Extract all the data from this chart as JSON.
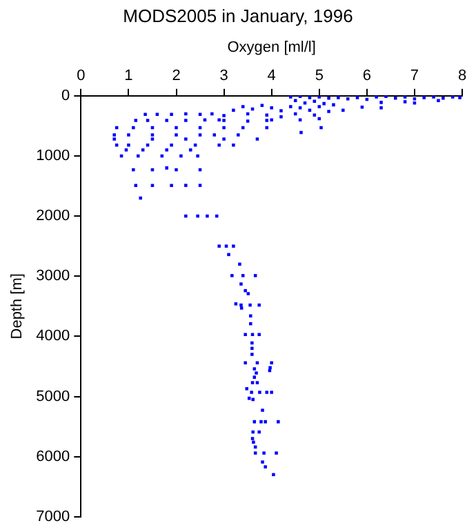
{
  "chart_data": {
    "type": "scatter",
    "title": "MODS2005 in January, 1996",
    "xlabel": "Oxygen [ml/l]",
    "ylabel": "Depth [m]",
    "xlim": [
      0,
      8
    ],
    "xticks": [
      0,
      1,
      2,
      3,
      4,
      5,
      6,
      7,
      8
    ],
    "ylim": [
      7000,
      0
    ],
    "yticks": [
      0,
      1000,
      2000,
      3000,
      4000,
      5000,
      6000,
      7000
    ],
    "grid": false,
    "legend": false,
    "marker": "square",
    "series": [
      {
        "color": "#0000ff",
        "x": [
          4.4,
          4.6,
          4.8,
          5.0,
          5.2,
          5.4,
          5.6,
          5.8,
          6.0,
          6.2,
          6.4,
          6.6,
          6.8,
          7.0,
          7.2,
          7.4,
          7.6,
          7.8,
          7.95,
          6.3,
          6.8,
          7.0,
          7.5,
          5.9,
          6.3,
          5.5,
          4.5,
          4.7,
          4.9,
          5.1,
          4.6,
          4.8,
          5.0,
          5.2,
          4.5,
          4.9,
          5.3,
          4.6,
          5.0,
          4.4,
          2.9,
          3.2,
          3.4,
          3.6,
          3.8,
          4.0,
          4.2,
          3.5,
          3.9,
          3.0,
          4.2,
          1.35,
          1.6,
          1.9,
          2.2,
          2.5,
          2.75,
          1.15,
          1.4,
          1.8,
          2.2,
          2.6,
          3.0,
          3.5,
          3.9,
          4.0,
          4.62,
          5.04,
          0.75,
          1.1,
          1.5,
          2.0,
          2.5,
          3.0,
          3.4,
          3.9,
          0.7,
          1.0,
          1.5,
          2.0,
          2.5,
          2.8,
          3.3,
          3.7,
          3.0,
          2.2,
          1.5,
          0.7,
          0.75,
          1.0,
          1.4,
          1.9,
          2.4,
          2.9,
          3.2,
          0.95,
          1.3,
          1.8,
          2.3,
          0.85,
          1.2,
          1.7,
          2.1,
          2.45,
          1.1,
          1.5,
          1.8,
          2.0,
          2.5,
          1.15,
          1.5,
          1.9,
          2.2,
          2.5,
          1.25,
          2.2,
          2.45,
          2.65,
          2.85,
          2.9,
          3.05,
          3.2,
          3.1,
          3.33,
          3.17,
          3.4,
          3.66,
          3.36,
          3.45,
          3.51,
          3.25,
          3.36,
          3.55,
          3.74,
          3.37,
          3.56,
          3.56,
          3.45,
          3.6,
          3.74,
          3.59,
          3.59,
          3.59,
          3.45,
          3.7,
          4.0,
          3.97,
          3.96,
          3.64,
          3.68,
          3.64,
          3.6,
          3.7,
          3.48,
          3.58,
          3.75,
          3.9,
          4.0,
          3.53,
          3.61,
          3.81,
          3.64,
          3.78,
          3.87,
          4.14,
          3.61,
          3.74,
          3.6,
          3.62,
          3.66,
          3.66,
          3.84,
          4.1,
          3.81,
          3.87,
          4.04
        ],
        "values": [
          20,
          10,
          30,
          20,
          40,
          30,
          50,
          30,
          60,
          20,
          10,
          40,
          20,
          50,
          30,
          20,
          40,
          20,
          30,
          110,
          100,
          120,
          80,
          190,
          200,
          240,
          80,
          120,
          90,
          130,
          200,
          240,
          180,
          260,
          300,
          320,
          150,
          400,
          380,
          180,
          400,
          240,
          180,
          220,
          160,
          200,
          250,
          300,
          320,
          330,
          350,
          310,
          310,
          310,
          300,
          310,
          300,
          410,
          410,
          410,
          410,
          400,
          410,
          420,
          410,
          400,
          610,
          530,
          530,
          530,
          530,
          530,
          530,
          530,
          530,
          530,
          650,
          650,
          650,
          650,
          650,
          650,
          650,
          720,
          720,
          720,
          720,
          720,
          820,
          820,
          820,
          820,
          820,
          820,
          820,
          900,
          900,
          900,
          900,
          1000,
          1000,
          1000,
          1000,
          1000,
          1230,
          1230,
          1200,
          1230,
          1230,
          1490,
          1490,
          1490,
          1490,
          1490,
          1700,
          2000,
          2000,
          2000,
          2000,
          2500,
          2500,
          2500,
          2640,
          2800,
          2990,
          2990,
          2990,
          3130,
          3240,
          3290,
          3460,
          3480,
          3480,
          3480,
          3530,
          3660,
          3790,
          3970,
          3970,
          3970,
          4110,
          4200,
          4300,
          4440,
          4440,
          4440,
          4520,
          4570,
          4540,
          4610,
          4680,
          4770,
          4770,
          4870,
          4930,
          4930,
          4930,
          4930,
          5030,
          5050,
          5230,
          5420,
          5420,
          5420,
          5420,
          5590,
          5590,
          5700,
          5760,
          5840,
          5940,
          5940,
          5940,
          6090,
          6170,
          6300
        ]
      }
    ]
  }
}
